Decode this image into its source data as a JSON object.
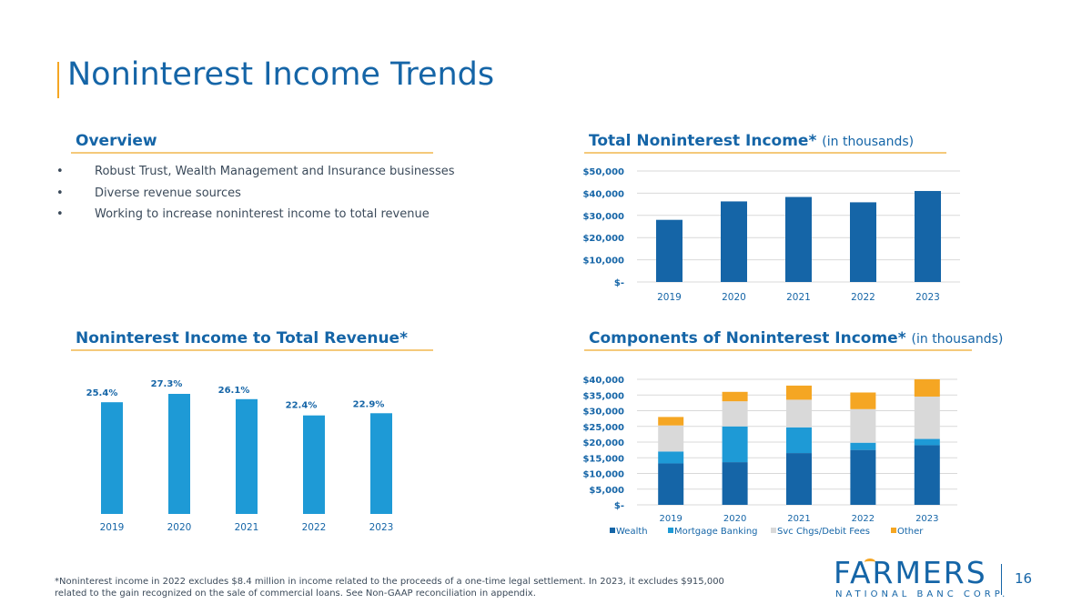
{
  "page": {
    "title": "Noninterest Income Trends",
    "page_number": "16",
    "footnote": "*Noninterest income in 2022 excludes $8.4 million in income related to the proceeds of a one-time legal settlement. In 2023, it excludes $915,000 related to the gain recognized on the sale of commercial loans. See Non-GAAP reconciliation in appendix."
  },
  "overview": {
    "title": "Overview",
    "bullets": [
      "Robust Trust, Wealth Management and Insurance businesses",
      "Diverse revenue sources",
      "Working to increase noninterest income to total revenue"
    ]
  },
  "section_titles": {
    "total_main": "Total Noninterest Income*",
    "total_sub": "(in thousands)",
    "ratio": "Noninterest Income to Total Revenue*",
    "components_main": "Components of Noninterest Income*",
    "components_sub": "(in thousands)"
  },
  "logo": {
    "name": "FARMERS",
    "sub": "NATIONAL BANC CORP."
  },
  "colors": {
    "navy": "#1565a7",
    "light_blue": "#1e9ad6",
    "gray": "#d9d9d9",
    "orange": "#f5a623"
  },
  "chart_data": [
    {
      "id": "total",
      "type": "bar",
      "title": "Total Noninterest Income* (in thousands)",
      "categories": [
        "2019",
        "2020",
        "2021",
        "2022",
        "2023"
      ],
      "values": [
        28000,
        36300,
        38300,
        35900,
        41000
      ],
      "ylim": [
        0,
        50000
      ],
      "yticks": [
        0,
        10000,
        20000,
        30000,
        40000,
        50000
      ],
      "ytick_labels": [
        "$-",
        "$10,000",
        "$20,000",
        "$30,000",
        "$40,000",
        "$50,000"
      ],
      "grid": true
    },
    {
      "id": "ratio",
      "type": "bar",
      "title": "Noninterest Income to Total Revenue*",
      "categories": [
        "2019",
        "2020",
        "2021",
        "2022",
        "2023"
      ],
      "values": [
        25.4,
        27.3,
        26.1,
        22.4,
        22.9
      ],
      "labels": [
        "25.4%",
        "27.3%",
        "26.1%",
        "22.4%",
        "22.9%"
      ],
      "ylim": [
        0,
        30
      ],
      "grid": false
    },
    {
      "id": "components",
      "type": "bar",
      "stacked": true,
      "title": "Components of Noninterest Income* (in thousands)",
      "categories": [
        "2019",
        "2020",
        "2021",
        "2022",
        "2023"
      ],
      "series": [
        {
          "name": "Wealth",
          "values": [
            13200,
            13600,
            16500,
            17500,
            19000
          ]
        },
        {
          "name": "Mortgage Banking",
          "values": [
            3800,
            11400,
            8200,
            2300,
            2000
          ]
        },
        {
          "name": "Svc Chgs/Debit Fees",
          "values": [
            8300,
            8000,
            8800,
            10700,
            13500
          ]
        },
        {
          "name": "Other",
          "values": [
            2700,
            3000,
            4500,
            5300,
            5500
          ]
        }
      ],
      "ylim": [
        0,
        40000
      ],
      "yticks": [
        0,
        5000,
        10000,
        15000,
        20000,
        25000,
        30000,
        35000,
        40000
      ],
      "ytick_labels": [
        "$-",
        "$5,000",
        "$10,000",
        "$15,000",
        "$20,000",
        "$25,000",
        "$30,000",
        "$35,000",
        "$40,000"
      ],
      "grid": true,
      "legend": "bottom"
    }
  ]
}
